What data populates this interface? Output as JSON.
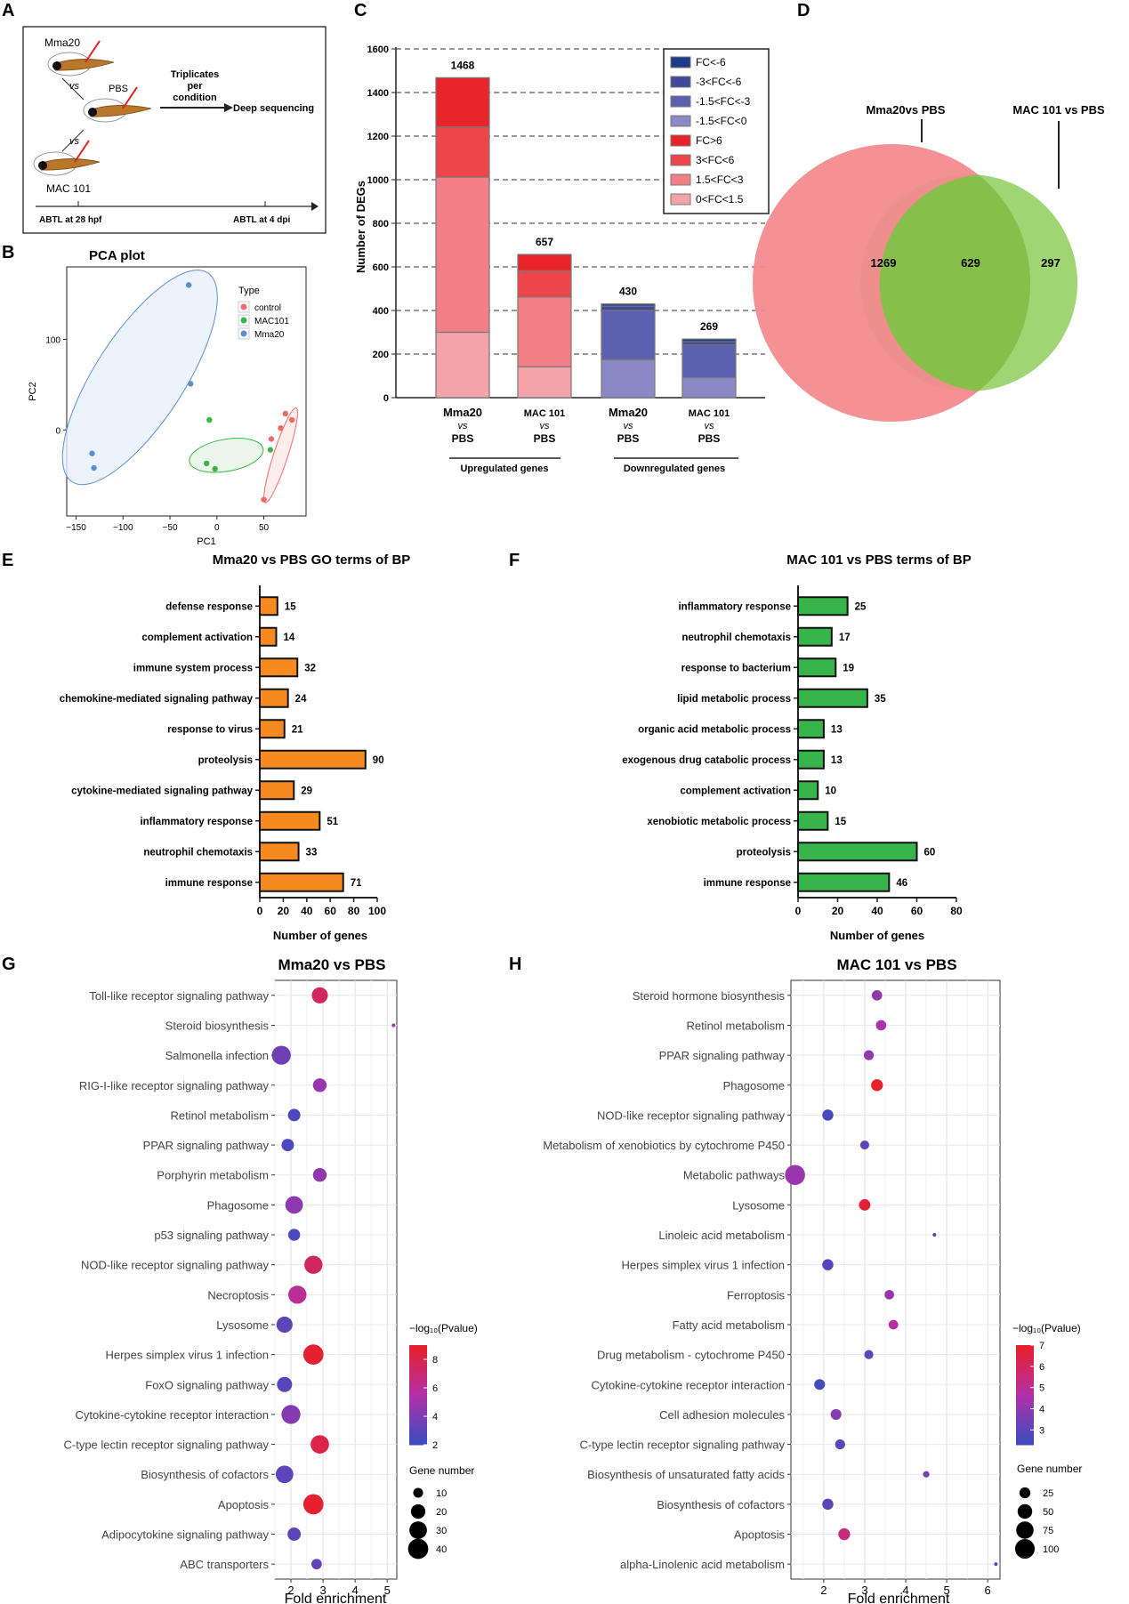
{
  "figure": {
    "panel_letters": [
      "A",
      "B",
      "C",
      "D",
      "E",
      "F",
      "G",
      "H"
    ]
  },
  "colors": {
    "up_0_1_5": "#f4a3a9",
    "up_1_5_3": "#f17f85",
    "up_3_6": "#ee4549",
    "up_gt6": "#e8232a",
    "dn_0_1_5": "#8a89c6",
    "dn_1_5_3": "#5d5fb0",
    "dn_3_6": "#3e4b9a",
    "dn_lt6": "#1f3a8a",
    "venn_left": "#f28b8e",
    "venn_right": "#8fce5c",
    "venn_overlap": "#86c04b",
    "bar_e": "#f68a1f",
    "bar_f": "#38b54a",
    "pca_control": "#ef6b6b",
    "pca_mac101": "#3cb54a",
    "pca_mma20": "#5b8fd4",
    "grad_low": "#3b4cc0",
    "grad_mid": "#b230a8",
    "grad_high": "#e8202a"
  },
  "panel_a": {
    "labels": {
      "mma20": "Mma20",
      "vs1": "vs",
      "pbs": "PBS",
      "vs2": "vs",
      "mac101": "MAC 101",
      "triplicates": "Triplicates",
      "per": "per",
      "condition": "condition",
      "deep": "Deep sequencing",
      "abtl28": "ABTL at 28 hpf",
      "abtl4": "ABTL at 4 dpi"
    }
  },
  "panel_b": {
    "chart_data": {
      "type": "scatter",
      "title": "PCA plot",
      "xlabel": "PC1",
      "ylabel": "PC2",
      "xlim": [
        -160,
        95
      ],
      "ylim": [
        -95,
        180
      ],
      "xticks": [
        -150,
        -100,
        -50,
        0,
        50
      ],
      "xtick_labels": [
        "−150",
        "−100",
        "−50",
        "0",
        "50"
      ],
      "yticks": [
        0,
        100
      ],
      "ytick_labels": [
        "0",
        "100"
      ],
      "legend_title": "Type",
      "series": [
        {
          "name": "control",
          "color": "#ef6b6b",
          "points": [
            [
              73,
              18
            ],
            [
              68,
              2
            ],
            [
              80,
              11
            ],
            [
              58,
              -10
            ],
            [
              50,
              -77
            ]
          ]
        },
        {
          "name": "MAC101",
          "color": "#3cb54a",
          "points": [
            [
              -8,
              11
            ],
            [
              -11,
              -37
            ],
            [
              -2,
              -43
            ],
            [
              57,
              -22
            ]
          ]
        },
        {
          "name": "Mma20",
          "color": "#5b8fd4",
          "points": [
            [
              -30,
              160
            ],
            [
              -28,
              51
            ],
            [
              -133,
              -26
            ],
            [
              -131,
              -42
            ]
          ]
        }
      ]
    }
  },
  "panel_c": {
    "chart_data": {
      "type": "bar",
      "stacked": true,
      "ylabel": "Number of DEGs",
      "ylim": [
        0,
        1600
      ],
      "yticks": [
        0,
        200,
        400,
        600,
        800,
        1000,
        1200,
        1400,
        1600
      ],
      "categories": [
        "Mma20 vs PBS (up)",
        "MAC 101 vs PBS (up)",
        "Mma20 vs PBS (down)",
        "MAC 101 vs PBS (down)"
      ],
      "category_labels": [
        {
          "l1": "Mma20",
          "l2": "vs",
          "l3": "PBS",
          "bold1": true
        },
        {
          "l1": "MAC 101",
          "l2": "vs",
          "l3": "PBS",
          "bold1": false
        },
        {
          "l1": "Mma20",
          "l2": "vs",
          "l3": "PBS",
          "bold1": true
        },
        {
          "l1": "MAC 101",
          "l2": "vs",
          "l3": "PBS",
          "bold1": false
        }
      ],
      "totals": [
        1468,
        657,
        430,
        269
      ],
      "stacks": [
        [
          {
            "label": "0<FC<1.5",
            "value": 300
          },
          {
            "label": "1.5<FC<3",
            "value": 712
          },
          {
            "label": "3<FC<6",
            "value": 230
          },
          {
            "label": "FC>6",
            "value": 226
          }
        ],
        [
          {
            "label": "0<FC<1.5",
            "value": 142
          },
          {
            "label": "1.5<FC<3",
            "value": 320
          },
          {
            "label": "3<FC<6",
            "value": 120
          },
          {
            "label": "FC>6",
            "value": 75
          }
        ],
        [
          {
            "label": "-1.5<FC<0",
            "value": 175
          },
          {
            "label": "-1.5<FC<-3",
            "value": 225
          },
          {
            "label": "-3<FC<-6",
            "value": 20
          },
          {
            "label": "FC<-6",
            "value": 10
          }
        ],
        [
          {
            "label": "-1.5<FC<0",
            "value": 92
          },
          {
            "label": "-1.5<FC<-3",
            "value": 150
          },
          {
            "label": "-3<FC<-6",
            "value": 15
          },
          {
            "label": "FC<-6",
            "value": 12
          }
        ]
      ],
      "legend": [
        {
          "label": "FC<-6",
          "color": "#1f3a8a"
        },
        {
          "label": "-3<FC<-6",
          "color": "#3e4b9a"
        },
        {
          "label": "-1.5<FC<-3",
          "color": "#5d5fb0"
        },
        {
          "label": "-1.5<FC<0",
          "color": "#8a89c6"
        },
        {
          "label": "FC>6",
          "color": "#e8232a"
        },
        {
          "label": "3<FC<6",
          "color": "#ee4549"
        },
        {
          "label": "1.5<FC<3",
          "color": "#f17f85"
        },
        {
          "label": "0<FC<1.5",
          "color": "#f4a3a9"
        }
      ],
      "groups": [
        "Upregulated genes",
        "Downregulated genes"
      ]
    }
  },
  "panel_d": {
    "chart_data": {
      "type": "venn",
      "sets": [
        {
          "name": "Mma20vs PBS",
          "only": 1269
        },
        {
          "name": "MAC 101 vs PBS",
          "only": 297
        }
      ],
      "overlap": 629
    }
  },
  "panel_e": {
    "chart_data": {
      "type": "bar",
      "orientation": "horizontal",
      "title": "Mma20 vs PBS GO terms of BP",
      "xlabel": "Number of genes",
      "xlim": [
        0,
        100
      ],
      "xticks": [
        0,
        20,
        40,
        60,
        80,
        100
      ],
      "categories": [
        "defense response",
        "complement activation",
        "immune system process",
        "chemokine-mediated signaling pathway",
        "response to virus",
        "proteolysis",
        "cytokine-mediated signaling pathway",
        "inflammatory response",
        "neutrophil chemotaxis",
        "immune response"
      ],
      "values": [
        15,
        14,
        32,
        24,
        21,
        90,
        29,
        51,
        33,
        71
      ]
    }
  },
  "panel_f": {
    "chart_data": {
      "type": "bar",
      "orientation": "horizontal",
      "title": "MAC 101 vs PBS terms of BP",
      "xlabel": "Number of genes",
      "xlim": [
        0,
        80
      ],
      "xticks": [
        0,
        20,
        40,
        60,
        80
      ],
      "categories": [
        "inflammatory response",
        "neutrophil chemotaxis",
        "response to bacterium",
        "lipid metabolic process",
        "organic acid metabolic process",
        "exogenous drug catabolic process",
        "complement activation",
        "xenobiotic metabolic process",
        "proteolysis",
        "immune response"
      ],
      "values": [
        25,
        17,
        19,
        35,
        13,
        13,
        10,
        15,
        60,
        46
      ]
    }
  },
  "panel_g": {
    "chart_data": {
      "type": "scatter",
      "title": "Mma20 vs PBS",
      "xlabel": "Fold enrichment",
      "xlim": [
        1.5,
        5.3
      ],
      "xticks": [
        2,
        3,
        4,
        5
      ],
      "color_title": "−log₁₀(Pvalue)",
      "color_range": [
        2,
        9
      ],
      "color_ticks": [
        2,
        4,
        6,
        8
      ],
      "size_title": "Gene number",
      "size_range": [
        5,
        45
      ],
      "size_legend": [
        10,
        20,
        30,
        40
      ],
      "terms": [
        "Toll-like receptor signaling pathway",
        "Steroid biosynthesis",
        "Salmonella infection",
        "RIG-I-like receptor signaling pathway",
        "Retinol metabolism",
        "PPAR signaling pathway",
        "Porphyrin metabolism",
        "Phagosome",
        "p53 signaling pathway",
        "NOD-like receptor signaling pathway",
        "Necroptosis",
        "Lysosome",
        "Herpes simplex virus 1 infection",
        "FoxO signaling pathway",
        "Cytokine-cytokine receptor interaction",
        "C-type lectin receptor signaling pathway",
        "Biosynthesis of cofactors",
        "Apoptosis",
        "Adipocytokine signaling pathway",
        "ABC transporters"
      ],
      "fold": [
        2.9,
        5.2,
        1.7,
        2.9,
        2.1,
        1.9,
        2.9,
        2.1,
        2.1,
        2.7,
        2.2,
        1.8,
        2.7,
        1.8,
        2.0,
        2.9,
        1.8,
        2.7,
        2.1,
        2.8
      ],
      "gene_number": [
        25,
        5,
        35,
        18,
        15,
        15,
        18,
        30,
        14,
        32,
        32,
        25,
        40,
        22,
        35,
        33,
        30,
        40,
        17,
        11
      ],
      "neg_log10_p": [
        7.5,
        5.0,
        3.5,
        4.8,
        2.6,
        2.5,
        4.6,
        4.4,
        2.5,
        7.5,
        6.0,
        3.0,
        8.8,
        2.8,
        4.2,
        8.2,
        3.0,
        8.8,
        3.0,
        3.2
      ]
    }
  },
  "panel_h": {
    "chart_data": {
      "type": "scatter",
      "title": "MAC 101 vs PBS",
      "xlabel": "Fold enrichment",
      "xlim": [
        1.2,
        6.3
      ],
      "xticks": [
        2,
        3,
        4,
        5,
        6
      ],
      "color_title": "−log₁₀(Pvalue)",
      "color_range": [
        2.3,
        7
      ],
      "color_ticks": [
        3,
        4,
        5,
        6,
        7
      ],
      "size_title": "Gene number",
      "size_range": [
        5,
        110
      ],
      "size_legend": [
        25,
        50,
        75,
        100
      ],
      "terms": [
        "Steroid hormone biosynthesis",
        "Retinol metabolism",
        "PPAR signaling pathway",
        "Phagosome",
        "NOD-like receptor signaling pathway",
        "Metabolism of xenobiotics by cytochrome P450",
        "Metabolic pathways",
        "Lysosome",
        "Linoleic acid metabolism",
        "Herpes simplex virus 1 infection",
        "Ferroptosis",
        "Fatty acid metabolism",
        "Drug metabolism - cytochrome P450",
        "Cytokine-cytokine receptor interaction",
        "Cell adhesion molecules",
        "C-type lectin receptor signaling pathway",
        "Biosynthesis of unsaturated fatty acids",
        "Biosynthesis of cofactors",
        "Apoptosis",
        "alpha-Linolenic acid metabolism"
      ],
      "fold": [
        3.3,
        3.4,
        3.1,
        3.3,
        2.1,
        3.0,
        1.3,
        3.0,
        4.7,
        2.1,
        3.6,
        3.7,
        3.1,
        1.9,
        2.3,
        2.4,
        4.5,
        2.1,
        2.5,
        6.2
      ],
      "gene_number": [
        22,
        22,
        20,
        30,
        26,
        16,
        105,
        28,
        5,
        26,
        18,
        18,
        16,
        24,
        24,
        20,
        8,
        26,
        30,
        5
      ],
      "neg_log10_p": [
        4.0,
        4.5,
        4.0,
        7.0,
        2.5,
        3.0,
        4.2,
        6.8,
        2.5,
        2.8,
        4.2,
        4.8,
        3.0,
        2.5,
        3.8,
        3.0,
        3.5,
        3.0,
        5.5,
        3.0
      ]
    }
  }
}
